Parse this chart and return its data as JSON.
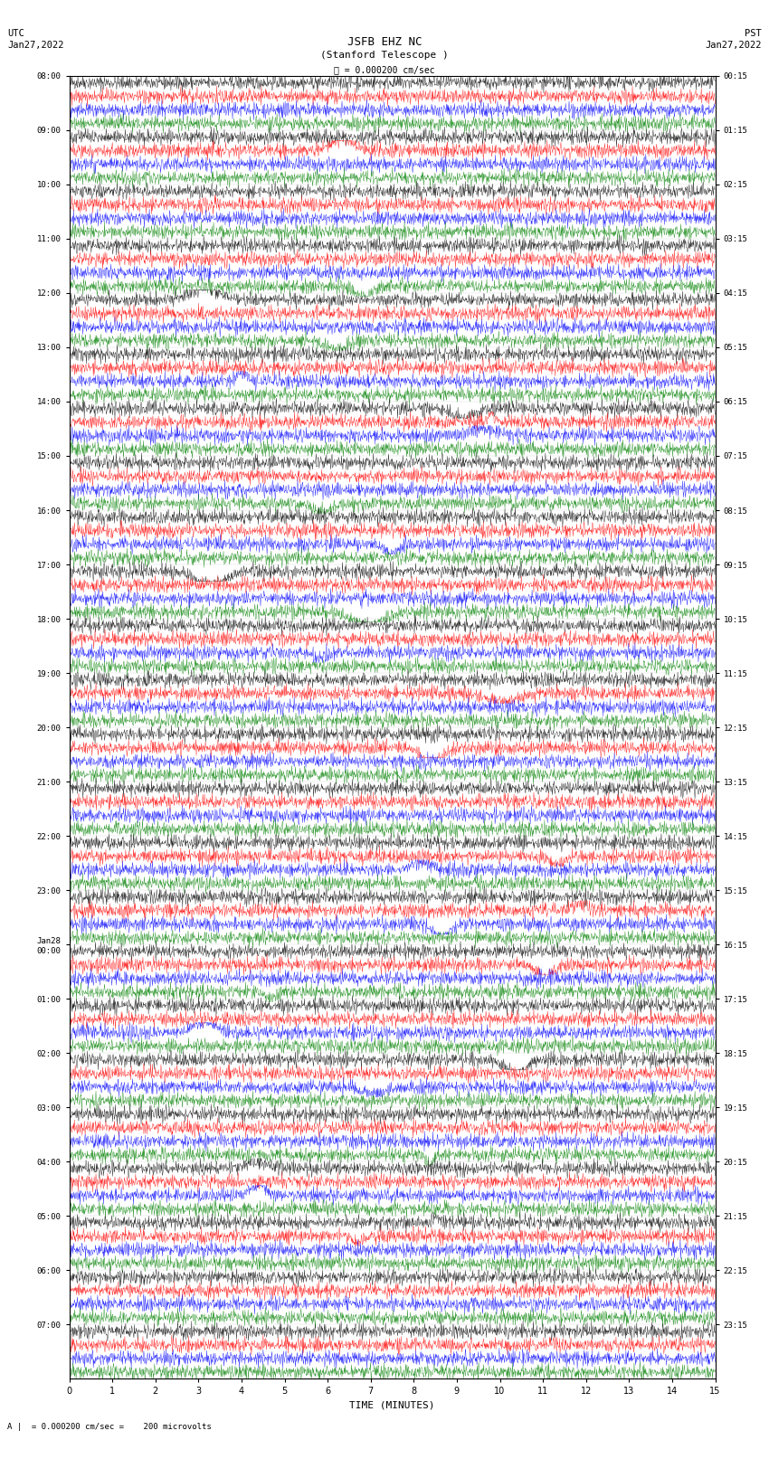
{
  "title_line1": "JSFB EHZ NC",
  "title_line2": "(Stanford Telescope )",
  "scale_label": "= 0.000200 cm/sec",
  "bottom_label": "= 0.000200 cm/sec =    200 microvolts",
  "xlabel": "TIME (MINUTES)",
  "utc_label_line1": "UTC",
  "utc_label_line2": "Jan27,2022",
  "pst_label_line1": "PST",
  "pst_label_line2": "Jan27,2022",
  "left_times_utc": [
    "08:00",
    "09:00",
    "10:00",
    "11:00",
    "12:00",
    "13:00",
    "14:00",
    "15:00",
    "16:00",
    "17:00",
    "18:00",
    "19:00",
    "20:00",
    "21:00",
    "22:00",
    "23:00",
    "Jan28\n00:00",
    "01:00",
    "02:00",
    "03:00",
    "04:00",
    "05:00",
    "06:00",
    "07:00"
  ],
  "right_times_pst": [
    "00:15",
    "01:15",
    "02:15",
    "03:15",
    "04:15",
    "05:15",
    "06:15",
    "07:15",
    "08:15",
    "09:15",
    "10:15",
    "11:15",
    "12:15",
    "13:15",
    "14:15",
    "15:15",
    "16:15",
    "17:15",
    "18:15",
    "19:15",
    "20:15",
    "21:15",
    "22:15",
    "23:15"
  ],
  "num_hours": 24,
  "traces_per_hour": 4,
  "duration_minutes": 15,
  "n_samples": 1500,
  "colors": [
    "black",
    "red",
    "blue",
    "green"
  ],
  "bg_color": "white",
  "noise_scale": 0.28,
  "xlim": [
    0,
    15
  ],
  "xticks": [
    0,
    1,
    2,
    3,
    4,
    5,
    6,
    7,
    8,
    9,
    10,
    11,
    12,
    13,
    14,
    15
  ],
  "figure_width": 8.5,
  "figure_height": 16.13,
  "dpi": 100
}
